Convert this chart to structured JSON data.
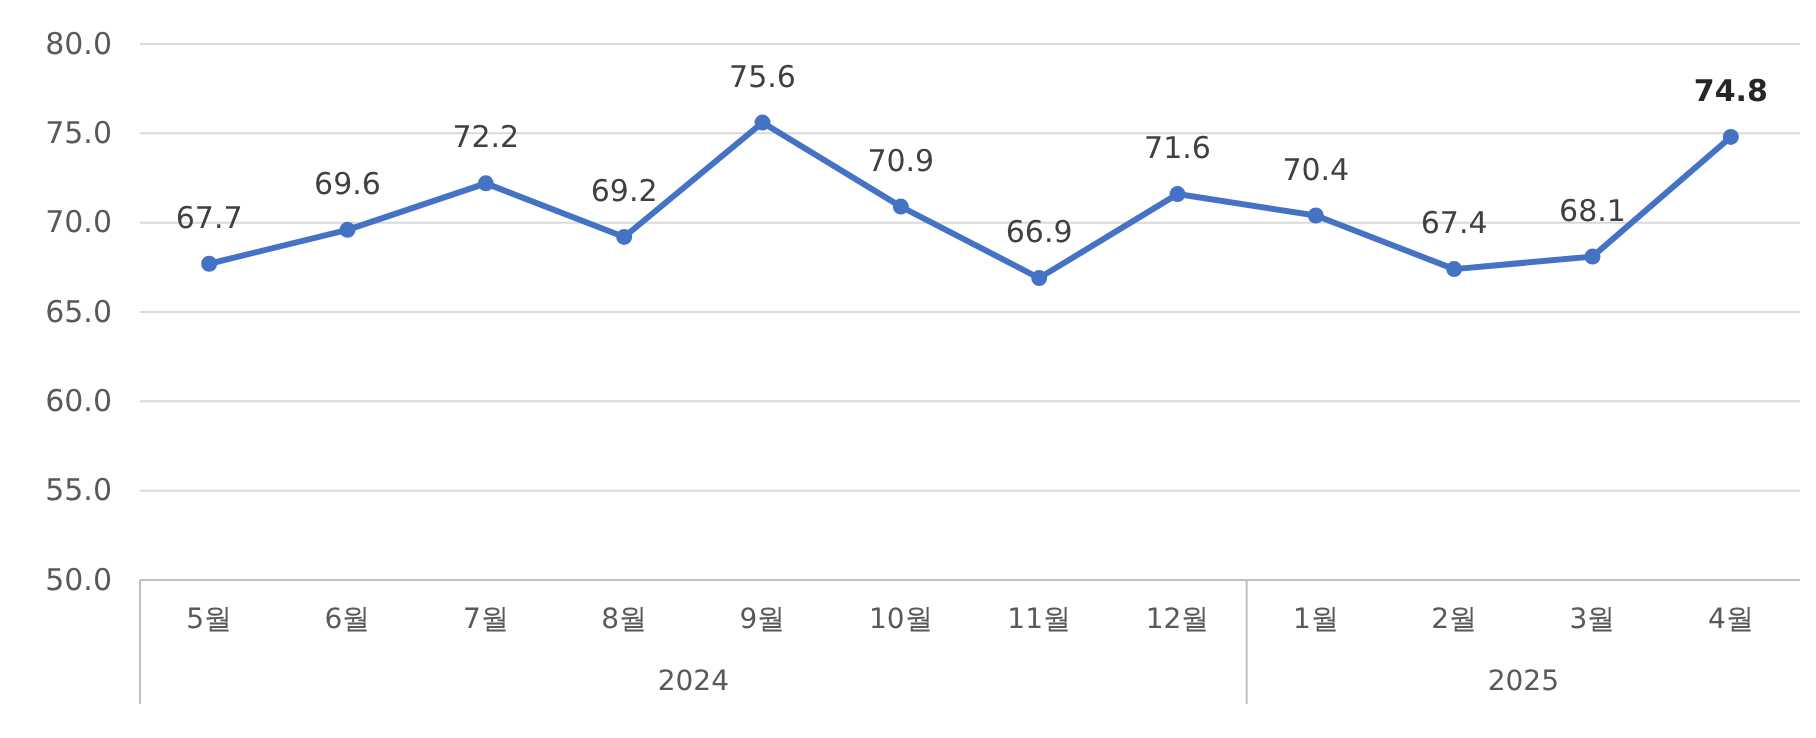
{
  "chart_data": {
    "type": "line",
    "categories": [
      "5월",
      "6월",
      "7월",
      "8월",
      "9월",
      "10월",
      "11월",
      "12월",
      "1월",
      "2월",
      "3월",
      "4월"
    ],
    "series": [
      {
        "color": "#4472c4",
        "values": [
          67.7,
          69.6,
          72.2,
          69.2,
          75.6,
          70.9,
          66.9,
          71.6,
          70.4,
          67.4,
          68.1,
          74.8
        ]
      }
    ],
    "ylim": [
      50,
      80
    ],
    "yticks": [
      {
        "value": 50,
        "label": "50.0"
      },
      {
        "value": 55,
        "label": "55.0"
      },
      {
        "value": 60,
        "label": "60.0"
      },
      {
        "value": 65,
        "label": "65.0"
      },
      {
        "value": 70,
        "label": "70.0"
      },
      {
        "value": 75,
        "label": "75.0"
      },
      {
        "value": 80,
        "label": "80.0"
      }
    ],
    "grid": "y",
    "marker": "circle",
    "line_style": "solid",
    "data_labels": true,
    "annotations": [
      "2024",
      "2025"
    ]
  }
}
